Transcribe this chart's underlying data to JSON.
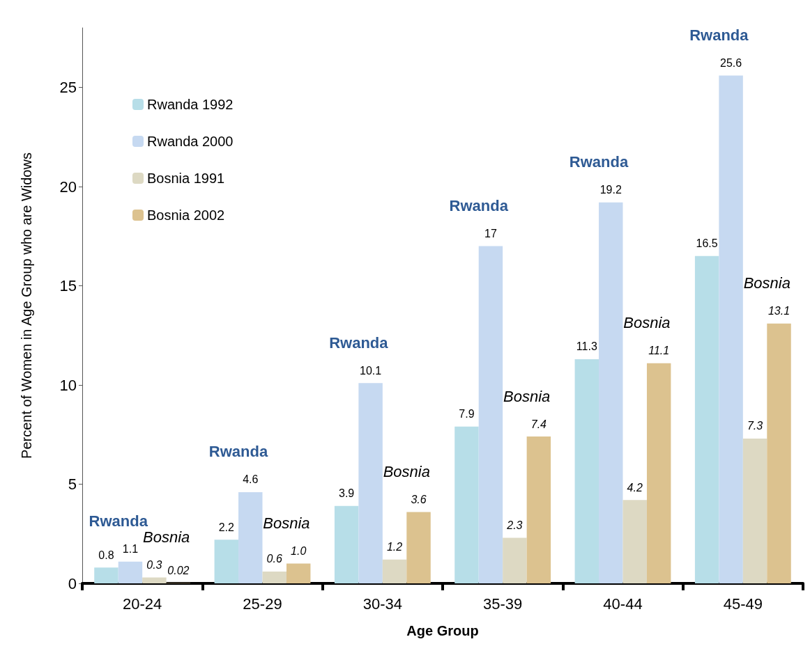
{
  "chart_data": {
    "type": "bar",
    "xlabel": "Age Group",
    "ylabel": "Percent of Women in Age Group who are Widows",
    "categories": [
      "20-24",
      "25-29",
      "30-34",
      "35-39",
      "40-44",
      "45-49"
    ],
    "series": [
      {
        "name": "Rwanda 1992",
        "color": "#b7dee8",
        "values": [
          0.8,
          2.2,
          3.9,
          7.9,
          11.3,
          16.5
        ],
        "value_labels": [
          "0.8",
          "2.2",
          "3.9",
          "7.9",
          "11.3",
          "16.5"
        ]
      },
      {
        "name": "Rwanda 2000",
        "color": "#c6d9f1",
        "values": [
          1.1,
          4.6,
          10.1,
          17,
          19.2,
          25.6
        ],
        "value_labels": [
          "1.1",
          "4.6",
          "10.1",
          "17",
          "19.2",
          "25.6"
        ]
      },
      {
        "name": "Bosnia 1991",
        "color": "#ddd9c3",
        "values": [
          0.3,
          0.6,
          1.2,
          2.3,
          4.2,
          7.3
        ],
        "value_labels": [
          "0.3",
          "0.6",
          "1.2",
          "2.3",
          "4.2",
          "7.3"
        ]
      },
      {
        "name": "Bosnia 2002",
        "color": "#dcc28f",
        "values": [
          0.02,
          1.0,
          3.6,
          7.4,
          11.1,
          13.1
        ],
        "value_labels": [
          "0.02",
          "1.0",
          "3.6",
          "7.4",
          "11.1",
          "13.1"
        ]
      }
    ],
    "annotations": [
      "Rwanda",
      "Bosnia",
      "Rwanda",
      "Bosnia",
      "Rwanda",
      "Bosnia",
      "Rwanda",
      "Bosnia",
      "Rwanda",
      "Bosnia",
      "Rwanda",
      "Bosnia"
    ],
    "ylim": [
      0,
      28
    ],
    "yticks": [
      0,
      5,
      10,
      15,
      20,
      25
    ],
    "grid": false,
    "legend": "top left"
  }
}
